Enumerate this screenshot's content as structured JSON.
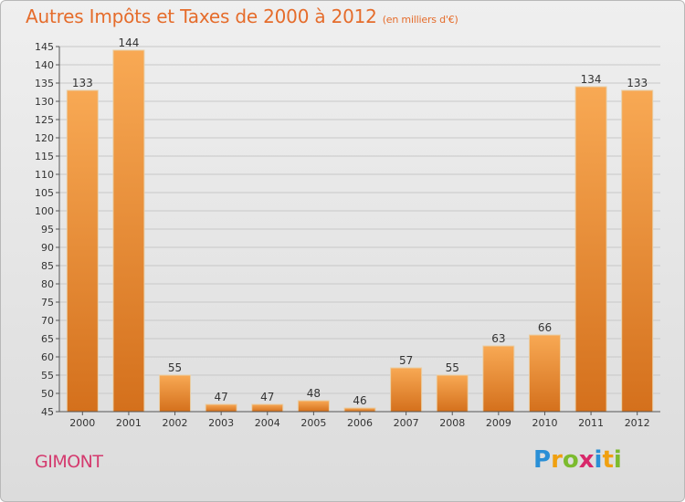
{
  "title": "Autres Impôts et Taxes de 2000 à 2012",
  "subtitle": "(en milliers d'€)",
  "place": "GIMONT",
  "logo": {
    "text": "Proxiti",
    "letters": [
      {
        "char": "P",
        "color": "#2a8fd6"
      },
      {
        "char": "r",
        "color": "#f0a010"
      },
      {
        "char": "o",
        "color": "#7cbb2e"
      },
      {
        "char": "x",
        "color": "#d8286a"
      },
      {
        "char": "i",
        "color": "#2a8fd6"
      },
      {
        "char": "t",
        "color": "#f0a010"
      },
      {
        "char": "i",
        "color": "#7cbb2e"
      }
    ]
  },
  "colors": {
    "bar_top": "#f8a954",
    "bar_bottom": "#d4701c",
    "grid": "#c8c8c8",
    "axis": "#555555"
  },
  "chart_data": {
    "type": "bar",
    "title": "Autres Impôts et Taxes de 2000 à 2012",
    "subtitle": "(en milliers d'€)",
    "categories": [
      "2000",
      "2001",
      "2002",
      "2003",
      "2004",
      "2005",
      "2006",
      "2007",
      "2008",
      "2009",
      "2010",
      "2011",
      "2012"
    ],
    "values": [
      133,
      144,
      55,
      47,
      47,
      48,
      46,
      57,
      55,
      63,
      66,
      134,
      133
    ],
    "data_labels": [
      "133",
      "144",
      "55",
      "47",
      "47",
      "48",
      "46",
      "57",
      "55",
      "63",
      "66",
      "134",
      "133"
    ],
    "yticks": [
      45,
      50,
      55,
      60,
      65,
      70,
      75,
      80,
      85,
      90,
      95,
      100,
      105,
      110,
      115,
      120,
      125,
      130,
      135,
      140,
      145
    ],
    "ylim": [
      45,
      145
    ],
    "grid": true,
    "legend": "none"
  }
}
